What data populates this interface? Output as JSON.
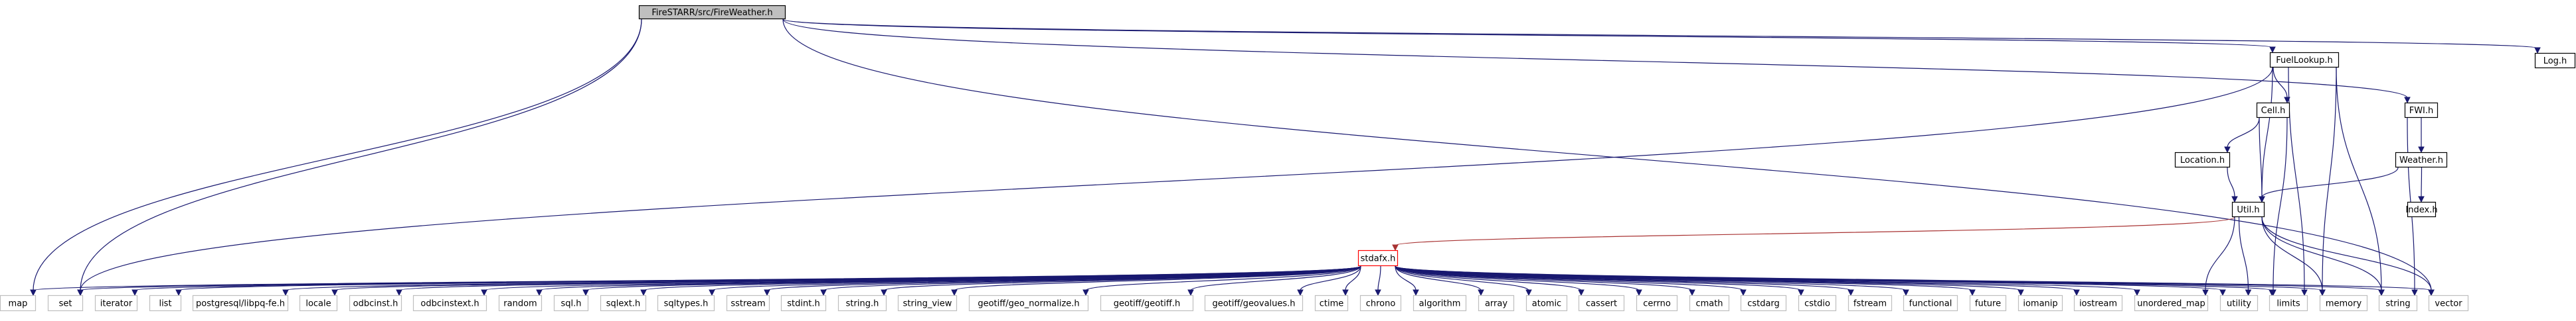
{
  "graph": {
    "root": "FireSTARR/src/FireWeather.h",
    "nodes": {
      "root": "FireSTARR/src/FireWeather.h",
      "fuellookup": "FuelLookup.h",
      "logh": "Log.h",
      "fwi": "FWI.h",
      "cell": "Cell.h",
      "weather": "Weather.h",
      "location": "Location.h",
      "index": "Index.h",
      "util": "Util.h",
      "stdafx": "stdafx.h",
      "map": "map",
      "set": "set",
      "iterator": "iterator",
      "list": "list",
      "libpq": "postgresql/libpq-fe.h",
      "locale": "locale",
      "odbcinst": "odbcinst.h",
      "odbcinstext": "odbcinstext.h",
      "random": "random",
      "sql": "sql.h",
      "sqlext": "sqlext.h",
      "sqltypes": "sqltypes.h",
      "sstream": "sstream",
      "stdint": "stdint.h",
      "stringh": "string.h",
      "string_view": "string_view",
      "geo_normalize": "geotiff/geo_normalize.h",
      "geotiffh": "geotiff/geotiff.h",
      "geovalues": "geotiff/geovalues.h",
      "ctime": "ctime",
      "chrono": "chrono",
      "algorithm": "algorithm",
      "array": "array",
      "atomic": "atomic",
      "cassert": "cassert",
      "cerrno": "cerrno",
      "cmath": "cmath",
      "cstdarg": "cstdarg",
      "cstdio": "cstdio",
      "fstream": "fstream",
      "functional": "functional",
      "future": "future",
      "iomanip": "iomanip",
      "iostream": "iostream",
      "unordered_map": "unordered_map",
      "utility": "utility",
      "limits": "limits",
      "memory": "memory",
      "string": "string",
      "vector": "vector"
    },
    "edges": [
      [
        "root",
        "logh"
      ],
      [
        "root",
        "fuellookup"
      ],
      [
        "root",
        "fwi"
      ],
      [
        "root",
        "map"
      ],
      [
        "root",
        "set"
      ],
      [
        "root",
        "vector"
      ],
      [
        "fuellookup",
        "cell"
      ],
      [
        "fuellookup",
        "util"
      ],
      [
        "fuellookup",
        "set"
      ],
      [
        "fuellookup",
        "limits"
      ],
      [
        "fuellookup",
        "memory"
      ],
      [
        "fuellookup",
        "string"
      ],
      [
        "cell",
        "location"
      ],
      [
        "cell",
        "util"
      ],
      [
        "cell",
        "limits"
      ],
      [
        "location",
        "util"
      ],
      [
        "fwi",
        "weather"
      ],
      [
        "fwi",
        "string"
      ],
      [
        "weather",
        "util"
      ],
      [
        "weather",
        "index"
      ],
      [
        "util",
        "stdafx"
      ],
      [
        "util",
        "unordered_map"
      ],
      [
        "util",
        "utility"
      ],
      [
        "util",
        "memory"
      ],
      [
        "util",
        "string"
      ],
      [
        "util",
        "vector"
      ],
      [
        "stdafx",
        "map"
      ],
      [
        "stdafx",
        "set"
      ],
      [
        "stdafx",
        "iterator"
      ],
      [
        "stdafx",
        "list"
      ],
      [
        "stdafx",
        "libpq"
      ],
      [
        "stdafx",
        "locale"
      ],
      [
        "stdafx",
        "odbcinst"
      ],
      [
        "stdafx",
        "odbcinstext"
      ],
      [
        "stdafx",
        "random"
      ],
      [
        "stdafx",
        "sql"
      ],
      [
        "stdafx",
        "sqlext"
      ],
      [
        "stdafx",
        "sqltypes"
      ],
      [
        "stdafx",
        "sstream"
      ],
      [
        "stdafx",
        "stdint"
      ],
      [
        "stdafx",
        "stringh"
      ],
      [
        "stdafx",
        "string_view"
      ],
      [
        "stdafx",
        "geo_normalize"
      ],
      [
        "stdafx",
        "geotiffh"
      ],
      [
        "stdafx",
        "geovalues"
      ],
      [
        "stdafx",
        "ctime"
      ],
      [
        "stdafx",
        "chrono"
      ],
      [
        "stdafx",
        "algorithm"
      ],
      [
        "stdafx",
        "array"
      ],
      [
        "stdafx",
        "atomic"
      ],
      [
        "stdafx",
        "cassert"
      ],
      [
        "stdafx",
        "cerrno"
      ],
      [
        "stdafx",
        "cmath"
      ],
      [
        "stdafx",
        "cstdarg"
      ],
      [
        "stdafx",
        "cstdio"
      ],
      [
        "stdafx",
        "fstream"
      ],
      [
        "stdafx",
        "functional"
      ],
      [
        "stdafx",
        "future"
      ],
      [
        "stdafx",
        "iomanip"
      ],
      [
        "stdafx",
        "iostream"
      ],
      [
        "stdafx",
        "unordered_map"
      ],
      [
        "stdafx",
        "utility"
      ],
      [
        "stdafx",
        "limits"
      ],
      [
        "stdafx",
        "memory"
      ],
      [
        "stdafx",
        "string"
      ],
      [
        "stdafx",
        "vector"
      ]
    ],
    "colors": {
      "edge": "#191970",
      "util_to_stdafx_edge": "#a83232",
      "root_fill": "#bfbfbf",
      "stdafx_border": "#ff0000",
      "leaf_border": "#bfbfbf"
    }
  }
}
